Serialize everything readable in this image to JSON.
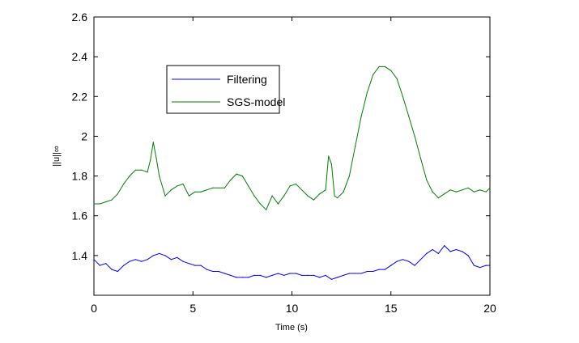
{
  "chart_data": {
    "type": "line",
    "title": "",
    "xlabel": "Time (s)",
    "ylabel": "||u||∞",
    "xlim": [
      0,
      20
    ],
    "ylim": [
      1.2,
      2.6
    ],
    "xticks": [
      0,
      5,
      10,
      15,
      20
    ],
    "yticks": [
      1.4,
      1.6,
      1.8,
      2,
      2.2,
      2.4,
      2.6
    ],
    "xtick_labels": [
      "0",
      "5",
      "10",
      "15",
      "20"
    ],
    "ytick_labels": [
      "1.4",
      "1.6",
      "1.8",
      "2",
      "2.2",
      "2.4",
      "2.6"
    ],
    "grid": false,
    "legend_position": "upper-left inside",
    "series": [
      {
        "name": "Filtering",
        "color": "#0000ff",
        "x": [
          0,
          0.3,
          0.6,
          0.9,
          1.2,
          1.5,
          1.8,
          2.1,
          2.4,
          2.7,
          3.0,
          3.3,
          3.6,
          3.9,
          4.2,
          4.5,
          4.8,
          5.1,
          5.4,
          5.7,
          6.0,
          6.3,
          6.6,
          6.9,
          7.2,
          7.5,
          7.8,
          8.1,
          8.4,
          8.7,
          9.0,
          9.3,
          9.6,
          9.9,
          10.2,
          10.5,
          10.8,
          11.1,
          11.4,
          11.7,
          12.0,
          12.3,
          12.6,
          12.9,
          13.2,
          13.5,
          13.8,
          14.1,
          14.4,
          14.7,
          15.0,
          15.3,
          15.6,
          15.9,
          16.2,
          16.5,
          16.8,
          17.1,
          17.4,
          17.7,
          18.0,
          18.3,
          18.6,
          18.9,
          19.2,
          19.5,
          19.8,
          20.0
        ],
        "y": [
          1.38,
          1.35,
          1.36,
          1.33,
          1.32,
          1.35,
          1.37,
          1.38,
          1.37,
          1.38,
          1.4,
          1.41,
          1.4,
          1.38,
          1.39,
          1.37,
          1.36,
          1.35,
          1.35,
          1.33,
          1.32,
          1.32,
          1.31,
          1.3,
          1.29,
          1.29,
          1.29,
          1.3,
          1.3,
          1.29,
          1.3,
          1.31,
          1.3,
          1.31,
          1.31,
          1.3,
          1.3,
          1.3,
          1.29,
          1.3,
          1.28,
          1.29,
          1.3,
          1.31,
          1.31,
          1.31,
          1.32,
          1.32,
          1.33,
          1.33,
          1.35,
          1.37,
          1.38,
          1.37,
          1.35,
          1.38,
          1.41,
          1.43,
          1.41,
          1.45,
          1.42,
          1.43,
          1.42,
          1.4,
          1.35,
          1.34,
          1.35,
          1.35
        ]
      },
      {
        "name": "SGS-model",
        "color": "#007f00",
        "x": [
          0,
          0.3,
          0.6,
          0.9,
          1.2,
          1.5,
          1.8,
          2.1,
          2.4,
          2.7,
          2.85,
          3.0,
          3.15,
          3.3,
          3.6,
          3.9,
          4.2,
          4.5,
          4.8,
          5.1,
          5.4,
          5.7,
          6.0,
          6.3,
          6.6,
          6.9,
          7.2,
          7.5,
          7.8,
          8.1,
          8.4,
          8.7,
          9.0,
          9.3,
          9.6,
          9.9,
          10.2,
          10.5,
          10.8,
          11.1,
          11.4,
          11.7,
          11.85,
          12.0,
          12.15,
          12.3,
          12.6,
          12.9,
          13.2,
          13.5,
          13.8,
          14.1,
          14.4,
          14.7,
          15.0,
          15.3,
          15.6,
          15.9,
          16.2,
          16.5,
          16.8,
          17.1,
          17.4,
          17.7,
          18.0,
          18.3,
          18.6,
          18.9,
          19.2,
          19.5,
          19.8,
          20.0
        ],
        "y": [
          1.66,
          1.66,
          1.67,
          1.68,
          1.71,
          1.76,
          1.8,
          1.83,
          1.83,
          1.82,
          1.88,
          1.97,
          1.89,
          1.8,
          1.7,
          1.73,
          1.75,
          1.76,
          1.7,
          1.72,
          1.72,
          1.73,
          1.74,
          1.74,
          1.74,
          1.78,
          1.81,
          1.8,
          1.75,
          1.7,
          1.66,
          1.63,
          1.7,
          1.66,
          1.7,
          1.75,
          1.76,
          1.73,
          1.7,
          1.68,
          1.71,
          1.73,
          1.9,
          1.86,
          1.7,
          1.69,
          1.72,
          1.8,
          1.95,
          2.1,
          2.22,
          2.31,
          2.35,
          2.35,
          2.33,
          2.29,
          2.2,
          2.1,
          2.0,
          1.89,
          1.78,
          1.72,
          1.69,
          1.71,
          1.73,
          1.72,
          1.73,
          1.74,
          1.72,
          1.73,
          1.72,
          1.74
        ]
      }
    ]
  }
}
